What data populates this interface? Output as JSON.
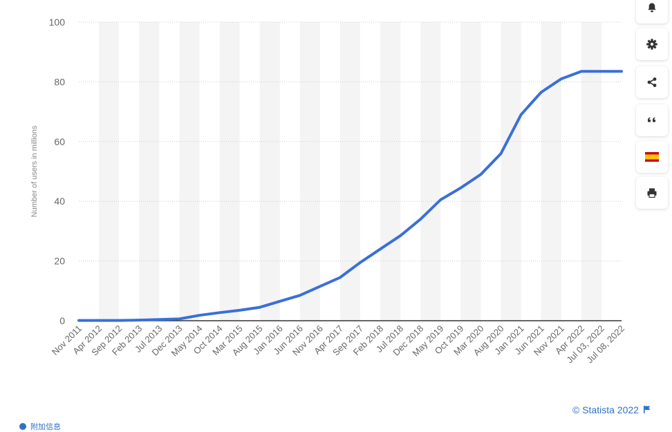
{
  "chart_data": {
    "type": "line",
    "ylabel": "Number of users in millions",
    "ylim": [
      0,
      100
    ],
    "yticks": [
      0,
      20,
      40,
      60,
      80,
      100
    ],
    "grid": true,
    "categories": [
      "Nov 2011",
      "Apr 2012",
      "Sep 2012",
      "Feb 2013",
      "Jul 2013",
      "Dec 2013",
      "May 2014",
      "Oct 2014",
      "Mar 2015",
      "Aug 2015",
      "Jan 2016",
      "Jun 2016",
      "Nov 2016",
      "Apr 2017",
      "Sep 2017",
      "Feb 2018",
      "Jul 2018",
      "Dec 2018",
      "May 2019",
      "Oct 2019",
      "Mar 2020",
      "Aug 2020",
      "Jan 2021",
      "Jun 2021",
      "Nov 2021",
      "Apr 2022",
      "Jul 03, 2022",
      "Jul 08, 2022"
    ],
    "series": [
      {
        "color": "#3a6fd8",
        "values": [
          0.1,
          0.1,
          0.1,
          0.2,
          0.4,
          0.6,
          1.8,
          2.7,
          3.5,
          4.5,
          6.5,
          8.5,
          11.5,
          14.5,
          19.5,
          24.0,
          28.5,
          34.0,
          40.5,
          44.5,
          49.0,
          56.0,
          69.0,
          76.5,
          81.0,
          83.5,
          83.5,
          83.5
        ]
      }
    ]
  },
  "toolbar": {
    "buttons": [
      {
        "icon": "bell-icon"
      },
      {
        "icon": "gear-icon"
      },
      {
        "icon": "share-icon"
      },
      {
        "icon": "quote-icon"
      },
      {
        "icon": "spain-flag-icon"
      },
      {
        "icon": "print-icon"
      }
    ]
  },
  "credit": {
    "text": "© Statista 2022"
  },
  "bottom": {
    "link_text": "附加信息"
  },
  "colors": {
    "line": "#3a6fd8",
    "accent": "#2d72c4",
    "band": "#f4f4f4",
    "grid": "#cccccc"
  }
}
